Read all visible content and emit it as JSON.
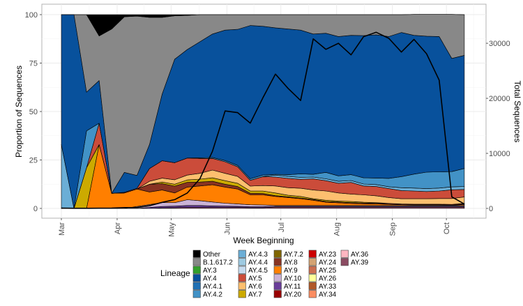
{
  "chart_data": {
    "type": "area",
    "stacked": true,
    "xlabel": "Week Beginning",
    "ylabel": "Proportion of Sequences",
    "y2label": "Total Sequences",
    "ylim": [
      0,
      100
    ],
    "y2lim": [
      0,
      35200
    ],
    "yticks": [
      "0",
      "25",
      "50",
      "75",
      "100"
    ],
    "y2ticks": [
      "0",
      "10000",
      "20000",
      "30000"
    ],
    "xticks": [
      {
        "date": "2021-03-01",
        "label": "Mar"
      },
      {
        "date": "2021-04-01",
        "label": "Apr"
      },
      {
        "date": "2021-05-01",
        "label": "May"
      },
      {
        "date": "2021-06-01",
        "label": "Jun"
      },
      {
        "date": "2021-07-01",
        "label": "Jul"
      },
      {
        "date": "2021-08-01",
        "label": "Aug"
      },
      {
        "date": "2021-09-01",
        "label": "Sep"
      },
      {
        "date": "2021-10-01",
        "label": "Oct"
      }
    ],
    "grid": true,
    "legend_title": "Lineage",
    "legend_position": "bottom",
    "weeks": [
      "2021-03-01",
      "2021-03-08",
      "2021-03-15",
      "2021-03-22",
      "2021-03-29",
      "2021-04-05",
      "2021-04-12",
      "2021-04-19",
      "2021-04-26",
      "2021-05-03",
      "2021-05-10",
      "2021-05-17",
      "2021-05-24",
      "2021-05-31",
      "2021-06-07",
      "2021-06-14",
      "2021-06-21",
      "2021-06-28",
      "2021-07-05",
      "2021-07-12",
      "2021-07-19",
      "2021-07-26",
      "2021-08-02",
      "2021-08-09",
      "2021-08-16",
      "2021-08-23",
      "2021-08-30",
      "2021-09-06",
      "2021-09-13",
      "2021-09-20",
      "2021-09-27",
      "2021-10-04",
      "2021-10-11"
    ],
    "series": [
      {
        "name": "AY.39",
        "color": "#8b4b62",
        "values": [
          0,
          0,
          0,
          0,
          0,
          0,
          0,
          0,
          0.3,
          0.4,
          0.5,
          0.5,
          0.5,
          0.5,
          0.5,
          0.4,
          0.4,
          0.7,
          0.7,
          0.7,
          0.7,
          0.7,
          0.7,
          0.7,
          0.7,
          0.7,
          0.7,
          0.7,
          0.7,
          0.7,
          0.7,
          0.7,
          0.7
        ]
      },
      {
        "name": "AY.11",
        "color": "#6a3d9a",
        "values": [
          0,
          0,
          0,
          0,
          0,
          0,
          0,
          0.5,
          0.7,
          0.8,
          1,
          1,
          0.8,
          0.7,
          0.6,
          0.5,
          0.5,
          0.4,
          0.4,
          0.4,
          0.4,
          0.4,
          0.4,
          0.4,
          0.4,
          0.4,
          0.4,
          0.4,
          0.4,
          0.4,
          0.4,
          0.4,
          0.4
        ]
      },
      {
        "name": "AY.10",
        "color": "#cab2d6",
        "values": [
          0,
          0,
          0,
          0,
          0,
          0,
          1,
          1.5,
          2,
          1.8,
          3,
          2.5,
          2,
          1.5,
          1.2,
          1,
          0.9,
          0.4,
          0.4,
          0.4,
          0.4,
          0.4,
          0.4,
          0.4,
          0.4,
          0.4,
          0.4,
          0.4,
          0.4,
          0.4,
          0.4,
          0.4,
          0.4
        ]
      },
      {
        "name": "AY.9",
        "color": "#ff7f00",
        "values": [
          0,
          0,
          0,
          33,
          7.8,
          8,
          9,
          6.5,
          6.5,
          5,
          6.5,
          7.6,
          8.9,
          8.3,
          7.7,
          5.1,
          5.2,
          4.7,
          4.1,
          3.5,
          2.7,
          1.7,
          1.4,
          1.1,
          0.9,
          0.8,
          0.6,
          0.4,
          0.3,
          0.3,
          0.3,
          0.2,
          0.5
        ]
      },
      {
        "name": "AY.8",
        "color": "#883322",
        "values": [
          0,
          0,
          0,
          0,
          0,
          0,
          0,
          4,
          3.3,
          3.5,
          2.5,
          2,
          1.8,
          1.5,
          1.3,
          0.8,
          0.7,
          0.4,
          0.4,
          0.4,
          0.4,
          0.4,
          0.4,
          0.4,
          0.4,
          0.4,
          0.4,
          0.4,
          0.4,
          0.4,
          0.4,
          0.4,
          0.4
        ]
      },
      {
        "name": "AY.7",
        "color": "#ccaa00",
        "values": [
          0,
          0,
          21,
          0,
          0,
          0,
          0,
          0,
          0.8,
          1,
          1.2,
          1.5,
          1.8,
          1.8,
          1.7,
          1.2,
          1.3,
          1.4,
          0.8,
          0.8,
          0.4,
          0.6,
          0.5,
          0.6,
          0.4,
          0.3,
          0.1,
          0,
          0,
          0,
          0,
          0,
          0.2
        ]
      },
      {
        "name": "AY.6",
        "color": "#fdbf6f",
        "values": [
          0,
          0,
          0,
          0,
          0,
          0,
          0,
          1.5,
          2,
          2.3,
          2.5,
          3,
          4,
          3.8,
          3.5,
          2.5,
          2.8,
          3.6,
          3.9,
          4.2,
          4.5,
          4.8,
          4.2,
          3.8,
          3.8,
          3.5,
          3,
          2.7,
          2.8,
          2.8,
          2.9,
          3,
          3.3
        ]
      },
      {
        "name": "AY.5",
        "color": "#cb4c3a",
        "values": [
          0,
          0,
          0,
          11,
          0,
          0.3,
          0.4,
          6.6,
          9,
          8.8,
          8.8,
          7.7,
          6,
          6,
          5,
          3,
          4.6,
          4.6,
          4.8,
          4.6,
          5.7,
          5.3,
          5,
          6,
          4.6,
          4.8,
          4.6,
          4.2,
          4,
          3.7,
          3.9,
          4.5,
          3.9
        ]
      },
      {
        "name": "AY.4.3",
        "color": "#6baed6",
        "values": [
          33,
          0,
          0,
          0,
          0,
          0,
          0,
          0,
          0,
          0,
          0,
          0,
          0,
          0,
          0,
          0,
          0,
          1,
          1,
          1,
          1,
          1,
          1,
          1,
          1,
          1,
          1,
          1.5,
          1.5,
          1.5,
          1.5,
          1.5,
          1.5
        ]
      },
      {
        "name": "AY.4.2",
        "color": "#4292c6",
        "values": [
          0,
          0,
          19,
          0,
          0,
          0,
          0,
          0,
          0,
          0,
          0,
          0.3,
          0.5,
          0.6,
          0.7,
          0.8,
          0.8,
          0.4,
          0.9,
          1.8,
          1.4,
          3.3,
          2.8,
          3,
          3.2,
          3.4,
          4.3,
          5.7,
          7.2,
          8.5,
          8.4,
          7.9,
          9.3
        ]
      },
      {
        "name": "AY.4",
        "color": "#08519c",
        "values": [
          67,
          100,
          20,
          22,
          0,
          10.3,
          6.6,
          12.4,
          34.4,
          53.4,
          56,
          59.9,
          63.7,
          67.3,
          70.2,
          79.1,
          76.8,
          75.6,
          75.2,
          74.2,
          72.4,
          71.8,
          71.9,
          71.9,
          73.4,
          73.9,
          73.2,
          74.4,
          71.6,
          70.2,
          69.8,
          58.4,
          58.4
        ]
      },
      {
        "name": "B.1.617.2",
        "color": "#888888",
        "values": [
          0,
          0,
          40,
          23,
          84.8,
          80.3,
          82.2,
          65.6,
          39.6,
          22.4,
          17.6,
          14,
          10,
          8,
          7.6,
          5.6,
          6,
          6.8,
          7.4,
          8,
          10,
          9.6,
          11.3,
          10.7,
          10.8,
          10.4,
          11.3,
          9.2,
          10.8,
          11.2,
          11.4,
          22.7,
          21
        ]
      },
      {
        "name": "Other",
        "color": "#000000",
        "values": [
          0,
          0,
          0,
          11,
          7.4,
          1.1,
          0.8,
          1.4,
          1.4,
          0.6,
          0.4,
          0,
          0,
          0,
          0,
          0,
          0,
          0,
          0,
          0,
          0,
          0,
          0,
          0,
          0,
          0,
          0,
          0,
          0,
          0,
          0,
          0,
          0
        ]
      }
    ],
    "total_sequences": [
      50,
      20,
      30,
      40,
      60,
      150,
      170,
      500,
      1100,
      1600,
      2800,
      5400,
      10400,
      17700,
      17400,
      15500,
      20100,
      24400,
      21800,
      19600,
      30800,
      28900,
      30000,
      27900,
      31200,
      32000,
      30900,
      28400,
      30700,
      28100,
      23300,
      2100,
      800
    ],
    "legend": [
      {
        "name": "Other",
        "color": "#000000"
      },
      {
        "name": "B.1.617.2",
        "color": "#888888"
      },
      {
        "name": "AY.3",
        "color": "#33a02c"
      },
      {
        "name": "AY.4",
        "color": "#08519c"
      },
      {
        "name": "AY.4.1",
        "color": "#2171b5"
      },
      {
        "name": "AY.4.2",
        "color": "#4292c6"
      },
      {
        "name": "AY.4.3",
        "color": "#6baed6"
      },
      {
        "name": "AY.4.4",
        "color": "#9ecae1"
      },
      {
        "name": "AY.4.5",
        "color": "#c6dbef"
      },
      {
        "name": "AY.5",
        "color": "#cb4c3a"
      },
      {
        "name": "AY.6",
        "color": "#fdbf6f"
      },
      {
        "name": "AY.7",
        "color": "#ccaa00"
      },
      {
        "name": "AY.7.2",
        "color": "#806600"
      },
      {
        "name": "AY.8",
        "color": "#883322"
      },
      {
        "name": "AY.9",
        "color": "#ff7f00"
      },
      {
        "name": "AY.10",
        "color": "#cab2d6"
      },
      {
        "name": "AY.11",
        "color": "#6a3d9a"
      },
      {
        "name": "AY.20",
        "color": "#990000"
      },
      {
        "name": "AY.23",
        "color": "#cc0000"
      },
      {
        "name": "AY.24",
        "color": "#d4a373"
      },
      {
        "name": "AY.25",
        "color": "#cc6e50"
      },
      {
        "name": "AY.26",
        "color": "#ffff99"
      },
      {
        "name": "AY.33",
        "color": "#b15928"
      },
      {
        "name": "AY.34",
        "color": "#fc8d62"
      },
      {
        "name": "AY.36",
        "color": "#ffb6c1"
      },
      {
        "name": "AY.39",
        "color": "#8b4b62"
      }
    ]
  }
}
